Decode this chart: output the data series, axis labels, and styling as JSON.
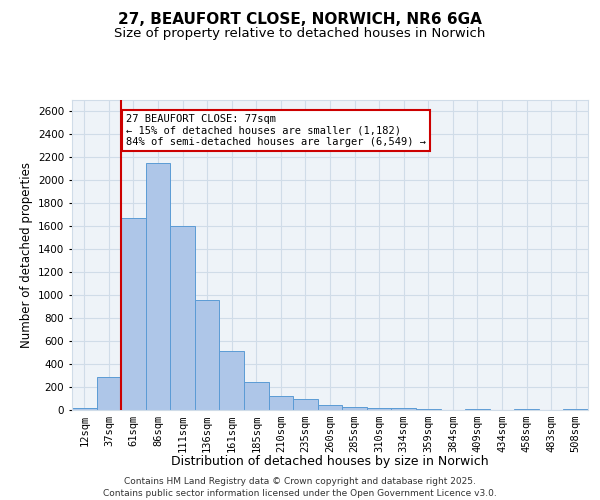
{
  "title_line1": "27, BEAUFORT CLOSE, NORWICH, NR6 6GA",
  "title_line2": "Size of property relative to detached houses in Norwich",
  "xlabel": "Distribution of detached houses by size in Norwich",
  "ylabel": "Number of detached properties",
  "categories": [
    "12sqm",
    "37sqm",
    "61sqm",
    "86sqm",
    "111sqm",
    "136sqm",
    "161sqm",
    "185sqm",
    "210sqm",
    "235sqm",
    "260sqm",
    "285sqm",
    "310sqm",
    "334sqm",
    "359sqm",
    "384sqm",
    "409sqm",
    "434sqm",
    "458sqm",
    "483sqm",
    "508sqm"
  ],
  "values": [
    15,
    290,
    1670,
    2150,
    1600,
    960,
    510,
    240,
    125,
    95,
    45,
    25,
    20,
    15,
    8,
    0,
    10,
    0,
    5,
    0,
    10
  ],
  "bar_color": "#aec6e8",
  "bar_edge_color": "#5b9bd5",
  "vline_x_index": 2,
  "vline_color": "#cc0000",
  "annotation_text": "27 BEAUFORT CLOSE: 77sqm\n← 15% of detached houses are smaller (1,182)\n84% of semi-detached houses are larger (6,549) →",
  "annotation_box_color": "#cc0000",
  "ylim": [
    0,
    2700
  ],
  "yticks": [
    0,
    200,
    400,
    600,
    800,
    1000,
    1200,
    1400,
    1600,
    1800,
    2000,
    2200,
    2400,
    2600
  ],
  "grid_color": "#d0dce8",
  "bg_color": "#eef3f8",
  "footer_line1": "Contains HM Land Registry data © Crown copyright and database right 2025.",
  "footer_line2": "Contains public sector information licensed under the Open Government Licence v3.0.",
  "title_fontsize": 11,
  "subtitle_fontsize": 9.5,
  "axis_label_fontsize": 8.5,
  "tick_fontsize": 7.5,
  "annotation_fontsize": 7.5,
  "footer_fontsize": 6.5
}
